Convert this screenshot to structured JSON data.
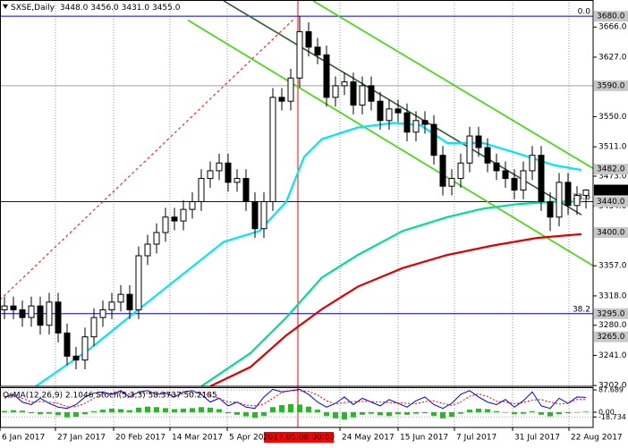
{
  "chart_data": [
    {
      "type": "candlestick",
      "header": "SXSE,Daily",
      "ohlc_text": "3448.0 3456.0 3431.0 3455.0",
      "open": [
        3300,
        3305,
        3300,
        3290,
        3305,
        3280,
        3310,
        3270,
        3240,
        3235,
        3265,
        3290,
        3300,
        3310,
        3320,
        3300,
        3370,
        3385,
        3400,
        3420,
        3415,
        3430,
        3440,
        3470,
        3480,
        3490,
        3465,
        3470,
        3440,
        3405,
        3440,
        3575,
        3570,
        3600,
        3660,
        3640,
        3630,
        3575,
        3590,
        3595,
        3565,
        3590,
        3570,
        3545,
        3560,
        3555,
        3530,
        3545,
        3540,
        3500,
        3460,
        3470,
        3490,
        3525,
        3510,
        3490,
        3480,
        3470,
        3455,
        3480,
        3500,
        3440,
        3420,
        3465,
        3435,
        3448
      ],
      "high": [
        3317,
        3317,
        3312,
        3317,
        3317,
        3322,
        3322,
        3282,
        3252,
        3277,
        3302,
        3312,
        3322,
        3332,
        3332,
        3382,
        3397,
        3412,
        3432,
        3432,
        3442,
        3452,
        3482,
        3492,
        3502,
        3502,
        3482,
        3482,
        3452,
        3452,
        3587,
        3587,
        3612,
        3680,
        3672,
        3652,
        3642,
        3602,
        3607,
        3607,
        3602,
        3602,
        3582,
        3572,
        3572,
        3567,
        3557,
        3557,
        3552,
        3512,
        3482,
        3502,
        3537,
        3537,
        3522,
        3502,
        3492,
        3482,
        3492,
        3512,
        3512,
        3452,
        3477,
        3477,
        3460,
        3456
      ],
      "low": [
        3288,
        3288,
        3278,
        3278,
        3268,
        3268,
        3258,
        3228,
        3223,
        3223,
        3253,
        3278,
        3288,
        3298,
        3288,
        3288,
        3358,
        3373,
        3388,
        3403,
        3403,
        3418,
        3428,
        3458,
        3468,
        3453,
        3453,
        3428,
        3393,
        3393,
        3428,
        3558,
        3558,
        3588,
        3628,
        3618,
        3563,
        3563,
        3578,
        3553,
        3553,
        3558,
        3533,
        3533,
        3543,
        3518,
        3518,
        3528,
        3488,
        3448,
        3448,
        3458,
        3478,
        3498,
        3478,
        3468,
        3458,
        3443,
        3443,
        3468,
        3428,
        3402,
        3408,
        3423,
        3423,
        3431
      ],
      "close": [
        3305,
        3300,
        3290,
        3305,
        3280,
        3310,
        3270,
        3240,
        3235,
        3265,
        3290,
        3300,
        3310,
        3320,
        3300,
        3370,
        3385,
        3400,
        3420,
        3415,
        3430,
        3440,
        3470,
        3480,
        3490,
        3465,
        3470,
        3440,
        3405,
        3440,
        3575,
        3570,
        3600,
        3660,
        3640,
        3630,
        3575,
        3590,
        3595,
        3565,
        3590,
        3570,
        3545,
        3560,
        3555,
        3530,
        3545,
        3540,
        3500,
        3460,
        3470,
        3490,
        3525,
        3510,
        3490,
        3480,
        3470,
        3455,
        3480,
        3500,
        3440,
        3420,
        3465,
        3435,
        3448,
        3455
      ],
      "up_color": "#ffffff",
      "down_color": "#000000",
      "xlim": [
        -0.5,
        65.8
      ],
      "ylim": [
        3201,
        3701
      ],
      "yticks": [
        {
          "value": 3666,
          "label": "3666.0"
        },
        {
          "value": 3627,
          "label": "3627.0"
        },
        {
          "value": 3550,
          "label": "3550.0"
        },
        {
          "value": 3511,
          "label": "3511.0"
        },
        {
          "value": 3473,
          "label": "3473.0"
        },
        {
          "value": 3434,
          "label": "3434.0"
        },
        {
          "value": 3357,
          "label": "3357.0"
        },
        {
          "value": 3318,
          "label": "3318.0"
        },
        {
          "value": 3280,
          "label": "3280.0"
        },
        {
          "value": 3241,
          "label": "3241.0"
        },
        {
          "value": 3202,
          "label": "3202.0"
        }
      ],
      "xticks": [
        {
          "value": -0.5,
          "label": "6 Jan 2017"
        },
        {
          "value": 5.7,
          "label": "27 Jan 2017"
        },
        {
          "value": 12.2,
          "label": "20 Feb 2017"
        },
        {
          "value": 18.5,
          "label": "14 Mar 2017"
        },
        {
          "value": 24.9,
          "label": "5 Apr 2017"
        },
        {
          "value": 37.5,
          "label": "24 May 2017"
        },
        {
          "value": 44,
          "label": "15 Jun 2017"
        },
        {
          "value": 50.3,
          "label": "7 Jul 2017"
        },
        {
          "value": 56.8,
          "label": "31 Jul 2017"
        },
        {
          "value": 63.1,
          "label": "22 Aug 2017"
        }
      ],
      "grid": true,
      "marker": {
        "value": 32.8,
        "label": "2017.05.08 00:00",
        "color": "#ff0000"
      },
      "lines": [
        {
          "color": "#00e5ff",
          "x": [
            3.5,
            9.5,
            14.5,
            19.5,
            24.5,
            28.5,
            31.5,
            33.5,
            35.5,
            39.5,
            43.5,
            46.5,
            49.5,
            53.5,
            57.5,
            61.5,
            64.5
          ],
          "values": [
            3201,
            3249,
            3296,
            3342,
            3388,
            3402,
            3440,
            3498,
            3521,
            3536,
            3542,
            3539,
            3516,
            3516,
            3502,
            3487,
            3481
          ]
        },
        {
          "color": "#00dd99",
          "x": [
            22,
            27.5,
            31.5,
            35.5,
            39.5,
            44.5,
            49.5,
            53.5,
            57.5,
            61.5,
            64.5
          ],
          "values": [
            3201,
            3244,
            3290,
            3342,
            3371,
            3402,
            3420,
            3431,
            3437,
            3440,
            3440
          ]
        },
        {
          "color": "#e00000",
          "x": [
            23,
            27.5,
            31.5,
            35.5,
            39.5,
            44.5,
            49.5,
            54.5,
            59.5,
            64.5
          ],
          "values": [
            3201,
            3226,
            3267,
            3301,
            3330,
            3354,
            3371,
            3383,
            3393,
            3398
          ]
        }
      ],
      "trendlines": [
        {
          "color": "#33dd00",
          "x": [
            34.5,
            65.8
          ],
          "values": [
            3700,
            3483
          ]
        },
        {
          "color": "#33dd00",
          "x": [
            20.5,
            65.8
          ],
          "values": [
            3675,
            3357
          ]
        },
        {
          "color": "#2e5e2e",
          "x": [
            24.5,
            64.5
          ],
          "values": [
            3700,
            3423
          ]
        },
        {
          "color": "#ff0000",
          "dash": true,
          "x": [
            -0.5,
            32.5
          ],
          "values": [
            3313,
            3678
          ]
        }
      ],
      "levels": [
        {
          "value": 3680,
          "label": "3680.0",
          "line": "#0000cc",
          "fib": "0.0"
        },
        {
          "value": 3590,
          "label": "3590.0",
          "line": "#a0a0a0"
        },
        {
          "value": 3482,
          "label": "3482.0"
        },
        {
          "value": 3440,
          "label": "3440.0",
          "line": "#0000cc",
          "fib": "23.6"
        },
        {
          "value": 3400,
          "label": "3400.0"
        },
        {
          "value": 3295,
          "label": "3295.0",
          "line": "#0000cc",
          "fib": "38.2"
        },
        {
          "value": 3265,
          "label": "3265.0"
        }
      ],
      "current": {
        "value": 3455,
        "label": "3455.0"
      }
    },
    {
      "type": "oscillator",
      "title": "OsMA(12,26,9) 2.1046  Stoch(5,3,3) 58.3737 50.2185",
      "ylim": [
        -60,
        95
      ],
      "yticks": [
        {
          "value": 87.689,
          "label": "87.689"
        },
        {
          "value": 0,
          "label": "0.00"
        },
        {
          "value": -18.734,
          "label": "-18.734"
        }
      ],
      "histogram": {
        "color": "#22bb22",
        "values": [
          5,
          8,
          6,
          -4,
          -8,
          -6,
          -12,
          -20,
          -18,
          -8,
          4,
          10,
          14,
          12,
          8,
          18,
          22,
          20,
          16,
          12,
          14,
          16,
          20,
          18,
          12,
          -4,
          -10,
          -16,
          -22,
          -14,
          20,
          28,
          32,
          30,
          22,
          10,
          -14,
          -24,
          -28,
          -20,
          -10,
          -6,
          -12,
          -14,
          -8,
          -10,
          -6,
          -4,
          -14,
          -24,
          -18,
          -6,
          10,
          14,
          12,
          4,
          -2,
          -8,
          -6,
          4,
          -10,
          -16,
          -8,
          -4,
          0,
          2.1046
        ]
      },
      "series": [
        {
          "color": "#0000ee",
          "values": [
            60,
            70,
            40,
            30,
            55,
            35,
            20,
            15,
            30,
            60,
            75,
            80,
            70,
            85,
            60,
            80,
            85,
            70,
            75,
            60,
            80,
            85,
            70,
            40,
            55,
            25,
            40,
            20,
            15,
            60,
            90,
            80,
            85,
            90,
            70,
            40,
            20,
            35,
            60,
            30,
            55,
            40,
            25,
            50,
            35,
            20,
            45,
            60,
            30,
            15,
            35,
            70,
            85,
            60,
            40,
            30,
            50,
            20,
            45,
            80,
            25,
            15,
            55,
            35,
            60,
            58.3737
          ]
        },
        {
          "color": "#ee0000",
          "dash": true,
          "values": [
            55,
            65,
            55,
            40,
            42,
            40,
            35,
            22,
            22,
            35,
            55,
            72,
            75,
            78,
            72,
            75,
            75,
            78,
            76,
            68,
            72,
            75,
            78,
            65,
            55,
            40,
            40,
            28,
            25,
            32,
            55,
            78,
            85,
            85,
            82,
            68,
            45,
            32,
            38,
            42,
            42,
            42,
            40,
            38,
            37,
            35,
            33,
            42,
            45,
            35,
            27,
            40,
            63,
            72,
            62,
            43,
            40,
            33,
            38,
            48,
            50,
            40,
            32,
            35,
            50,
            50.2185
          ]
        }
      ]
    }
  ]
}
